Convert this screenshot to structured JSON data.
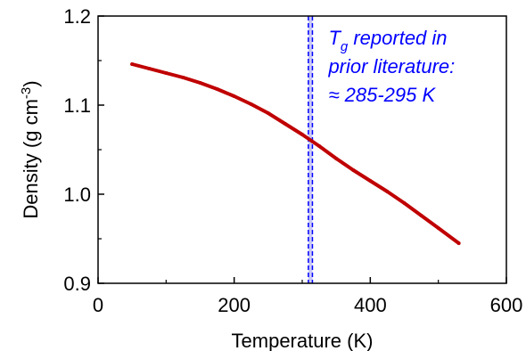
{
  "chart_data": {
    "type": "line",
    "xlabel": "Temperature (K)",
    "ylabel": {
      "base": "Density (g cm",
      "superscript": "-3",
      "close": ")"
    },
    "xlim": [
      0,
      600
    ],
    "ylim": [
      0.9,
      1.2
    ],
    "x_ticks": [
      0,
      200,
      400,
      600
    ],
    "x_tick_labels": [
      "0",
      "200",
      "400",
      "600"
    ],
    "y_ticks": [
      0.9,
      1.0,
      1.1,
      1.2
    ],
    "y_tick_labels": [
      "0.9",
      "1.0",
      "1.1",
      "1.2"
    ],
    "grid": false,
    "series": [
      {
        "color": "#c00000",
        "x": [
          50,
          75,
          100,
          125,
          150,
          175,
          200,
          225,
          250,
          275,
          300,
          325,
          350,
          375,
          400,
          425,
          450,
          475,
          500,
          530
        ],
        "y": [
          1.146,
          1.141,
          1.136,
          1.131,
          1.125,
          1.118,
          1.11,
          1.101,
          1.091,
          1.079,
          1.067,
          1.054,
          1.04,
          1.027,
          1.015,
          1.003,
          0.99,
          0.976,
          0.962,
          0.945
        ]
      }
    ],
    "tg_band": {
      "x_range": [
        309,
        315
      ],
      "line_color": "#0000ff",
      "fill_color": "#c9c9f5"
    },
    "annotation": {
      "color": "#0000ff",
      "lines": [
        {
          "prefix": "T",
          "subscript": "g",
          "suffix": " reported in"
        },
        {
          "text": "prior literature:"
        },
        {
          "text": "≈ 285-295 K"
        }
      ]
    }
  }
}
